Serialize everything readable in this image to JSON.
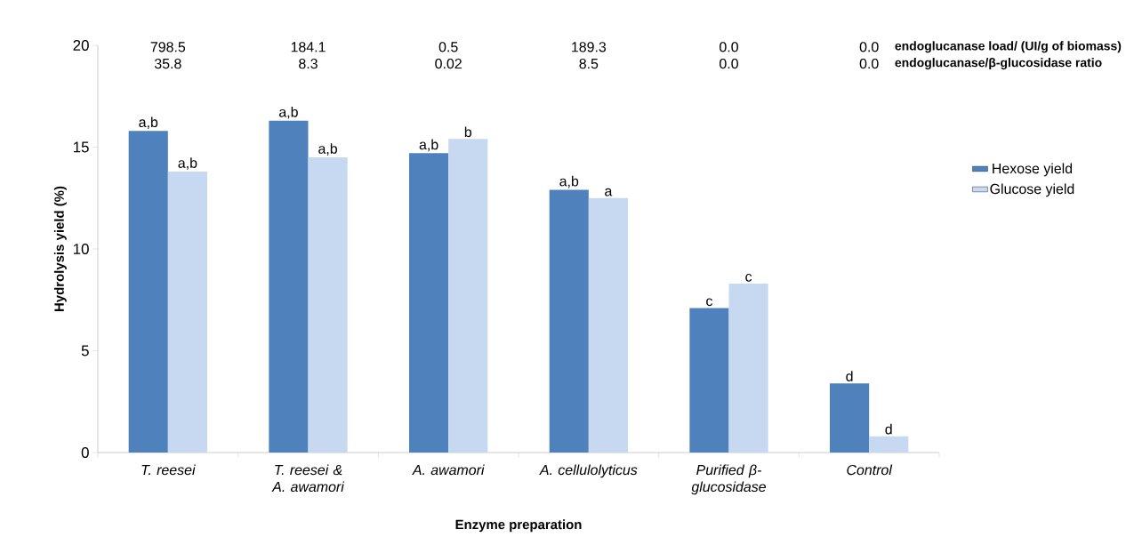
{
  "chart_data": {
    "type": "bar",
    "xlabel": "Enzyme preparation",
    "ylabel": "Hydrolysis yield (%)",
    "categories": [
      "T. reesei",
      "T. reesei & A. awamori",
      "A. awamori",
      "A. cellulolyticus",
      "Purified β-glucosidase",
      "Control"
    ],
    "series": [
      {
        "name": "Hexose yield",
        "color": "#4f81bd",
        "values": [
          15.8,
          16.3,
          14.7,
          12.9,
          7.1,
          3.4
        ],
        "value_labels": [
          "a,b",
          "a,b",
          "a,b",
          "a,b",
          "c",
          "d"
        ]
      },
      {
        "name": "Glucose yield",
        "color": "#c6d9f0",
        "values": [
          13.8,
          14.5,
          15.4,
          12.5,
          8.3,
          0.8
        ],
        "value_labels": [
          "a,b",
          "a,b",
          "b",
          "a",
          "c",
          "d"
        ]
      }
    ],
    "ylim": [
      0,
      20
    ],
    "yticks": [
      0,
      5,
      10,
      15,
      20
    ],
    "grid": false,
    "legend": "right",
    "annotations": [
      "798.5",
      "184.1",
      "0.5",
      "189.3",
      "0.0",
      "0.0",
      "endoglucanase load/ (UI/g of biomass)",
      "35.8",
      "8.3",
      "0.02",
      "8.5",
      "0.0",
      "0.0",
      "endoglucanase/β-glucosidase ratio"
    ]
  }
}
